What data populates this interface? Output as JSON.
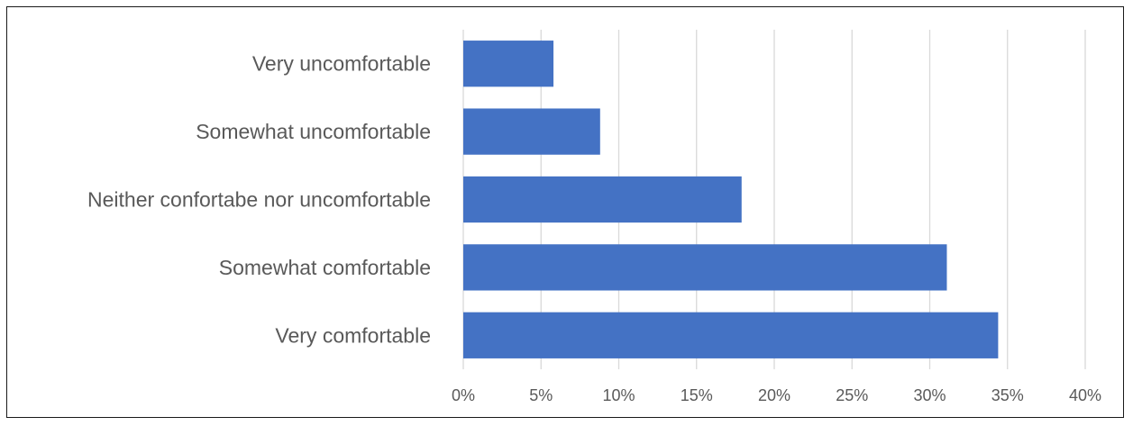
{
  "chart_data": {
    "type": "bar",
    "orientation": "horizontal",
    "title": "",
    "xlabel": "",
    "ylabel": "",
    "categories": [
      "Very uncomfortable",
      "Somewhat uncomfortable",
      "Neither confortabe nor uncomfortable",
      "Somewhat comfortable",
      "Very comfortable"
    ],
    "values": [
      5.8,
      8.8,
      17.9,
      31.1,
      34.4
    ],
    "xlim": [
      0,
      40
    ],
    "xticks": [
      0,
      5,
      10,
      15,
      20,
      25,
      30,
      35,
      40
    ],
    "xtick_labels": [
      "0%",
      "5%",
      "10%",
      "15%",
      "20%",
      "25%",
      "30%",
      "35%",
      "40%"
    ],
    "grid": "vertical",
    "legend": "none",
    "bar_color": "#4472C4",
    "grid_color": "#D9D9D9"
  }
}
